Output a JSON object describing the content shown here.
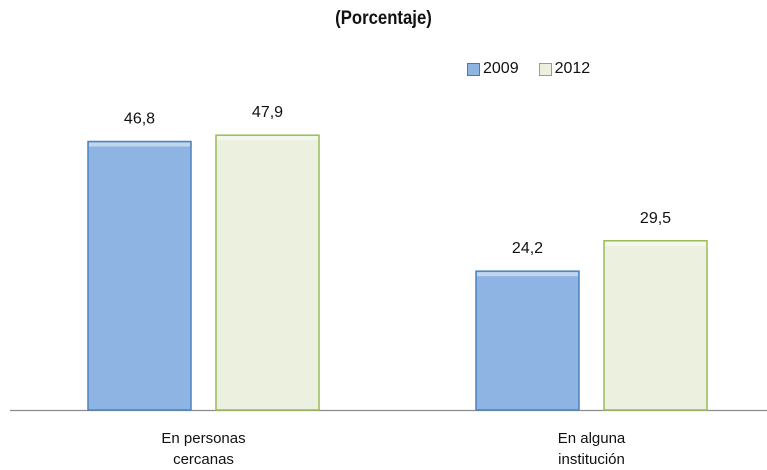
{
  "chart_data": {
    "type": "bar",
    "title": "(Porcentaje)",
    "categories": [
      [
        "En personas",
        "cercanas"
      ],
      [
        "En alguna",
        "institución"
      ]
    ],
    "series": [
      {
        "name": "2009",
        "values": [
          46.8,
          24.2
        ],
        "value_labels": [
          "46,8",
          "24,2"
        ],
        "color": "#8db4e2",
        "edge": "#4f81bd"
      },
      {
        "name": "2012",
        "values": [
          47.9,
          29.5
        ],
        "value_labels": [
          "47,9",
          "29,5"
        ],
        "color": "#ebf1de",
        "edge": "#9bbb59"
      }
    ],
    "xlabel": "",
    "ylabel": "",
    "ylim": [
      0,
      50
    ],
    "legend_position": "top-right",
    "grid": false
  }
}
